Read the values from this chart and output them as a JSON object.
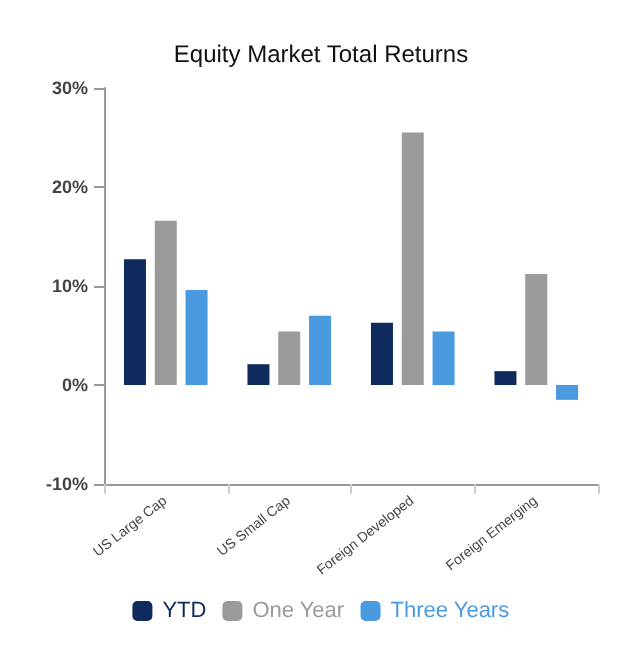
{
  "chart_data": {
    "type": "bar",
    "title": "Equity Market Total Returns",
    "categories": [
      "US Large Cap",
      "US Small Cap",
      "Foreign Developed",
      "Foreign Emerging"
    ],
    "series": [
      {
        "name": "YTD",
        "color": "#0f2a5c",
        "values": [
          12.7,
          2.1,
          6.3,
          1.4
        ]
      },
      {
        "name": "One Year",
        "color": "#9a9a9a",
        "values": [
          16.6,
          5.4,
          25.5,
          11.2
        ]
      },
      {
        "name": "Three Years",
        "color": "#4a9ae0",
        "values": [
          9.6,
          7.0,
          5.4,
          -1.5
        ]
      }
    ],
    "ylim": [
      -10,
      30
    ],
    "yticks": [
      {
        "value": -10,
        "label": "-10%"
      },
      {
        "value": 0,
        "label": "0%"
      },
      {
        "value": 10,
        "label": "10%"
      },
      {
        "value": 20,
        "label": "20%"
      },
      {
        "value": 30,
        "label": "30%"
      }
    ],
    "grid": false,
    "legend": "bottom"
  }
}
